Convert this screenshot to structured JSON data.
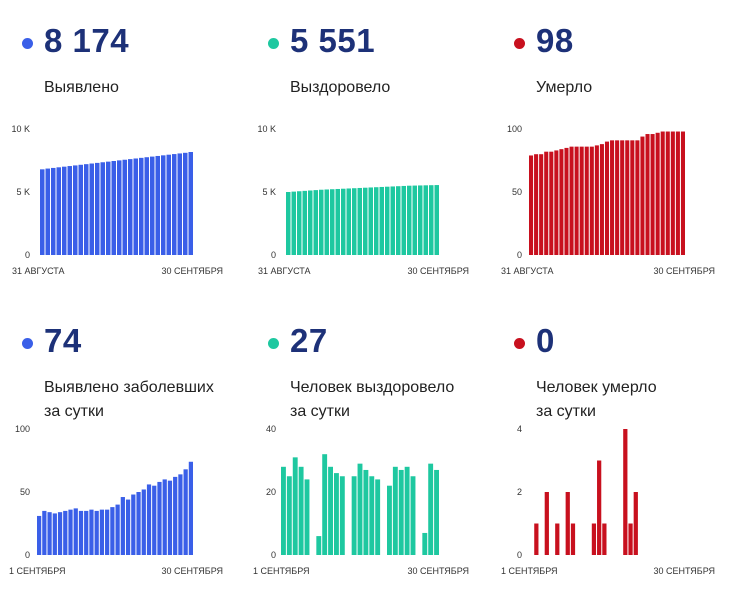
{
  "panels": [
    {
      "value": "8 174",
      "label": "Выявлено",
      "color": "#3a5fe8"
    },
    {
      "value": "5 551",
      "label": "Выздоровело",
      "color": "#1ec8a0"
    },
    {
      "value": "98",
      "label": "Умерло",
      "color": "#c8101e"
    },
    {
      "value": "74",
      "label": "Выявлено заболевших за сутки",
      "color": "#3a5fe8"
    },
    {
      "value": "27",
      "label": "Человек выздоровело за сутки",
      "color": "#1ec8a0"
    },
    {
      "value": "0",
      "label": "Человек умерло за сутки",
      "color": "#c8101e"
    }
  ],
  "chart_data": [
    {
      "type": "bar",
      "title": "",
      "yticks": [
        "0",
        "5 K",
        "10 K"
      ],
      "ylim": [
        0,
        10000
      ],
      "x_start": "31 АВГУСТА",
      "x_end": "30 СЕНТЯБРЯ",
      "values": [
        6800,
        6860,
        6910,
        6960,
        7010,
        7060,
        7110,
        7160,
        7210,
        7260,
        7310,
        7360,
        7410,
        7460,
        7510,
        7560,
        7610,
        7660,
        7710,
        7760,
        7810,
        7860,
        7910,
        7960,
        8010,
        8060,
        8110,
        8174
      ]
    },
    {
      "type": "bar",
      "title": "",
      "yticks": [
        "0",
        "5 K",
        "10 K"
      ],
      "ylim": [
        0,
        10000
      ],
      "x_start": "31 АВГУСТА",
      "x_end": "30 СЕНТЯБРЯ",
      "values": [
        5000,
        5030,
        5060,
        5090,
        5120,
        5150,
        5180,
        5200,
        5220,
        5240,
        5260,
        5280,
        5300,
        5320,
        5340,
        5360,
        5380,
        5400,
        5420,
        5440,
        5460,
        5480,
        5500,
        5510,
        5520,
        5530,
        5540,
        5551
      ]
    },
    {
      "type": "bar",
      "title": "",
      "yticks": [
        "0",
        "50",
        "100"
      ],
      "ylim": [
        0,
        100
      ],
      "x_start": "31 АВГУСТА",
      "x_end": "30 СЕНТЯБРЯ",
      "values": [
        79,
        80,
        80,
        82,
        82,
        83,
        84,
        85,
        86,
        86,
        86,
        86,
        86,
        87,
        88,
        90,
        91,
        91,
        91,
        91,
        91,
        91,
        94,
        96,
        96,
        97,
        98,
        98,
        98,
        98,
        98
      ]
    },
    {
      "type": "bar",
      "title": "",
      "yticks": [
        "0",
        "50",
        "100"
      ],
      "ylim": [
        0,
        100
      ],
      "x_start": "1 СЕНТЯБРЯ",
      "x_end": "30 СЕНТЯБРЯ",
      "values": [
        31,
        35,
        34,
        33,
        34,
        35,
        36,
        37,
        35,
        35,
        36,
        35,
        36,
        36,
        38,
        40,
        46,
        44,
        48,
        50,
        52,
        56,
        55,
        58,
        60,
        59,
        62,
        64,
        68,
        74
      ]
    },
    {
      "type": "bar",
      "title": "",
      "yticks": [
        "0",
        "20",
        "40"
      ],
      "ylim": [
        0,
        40
      ],
      "x_start": "1 СЕНТЯБРЯ",
      "x_end": "30 СЕНТЯБРЯ",
      "values": [
        28,
        25,
        31,
        28,
        24,
        0,
        6,
        32,
        28,
        26,
        25,
        0,
        25,
        29,
        27,
        25,
        24,
        0,
        22,
        28,
        27,
        28,
        25,
        0,
        7,
        29,
        27
      ]
    },
    {
      "type": "bar",
      "title": "",
      "yticks": [
        "0",
        "2",
        "4"
      ],
      "ylim": [
        0,
        4
      ],
      "x_start": "1 СЕНТЯБРЯ",
      "x_end": "30 СЕНТЯБРЯ",
      "values": [
        0,
        1,
        0,
        2,
        0,
        1,
        0,
        2,
        1,
        0,
        0,
        0,
        1,
        3,
        1,
        0,
        0,
        0,
        4,
        1,
        2,
        0,
        0,
        0,
        0,
        0,
        0,
        0,
        0,
        0
      ]
    }
  ]
}
